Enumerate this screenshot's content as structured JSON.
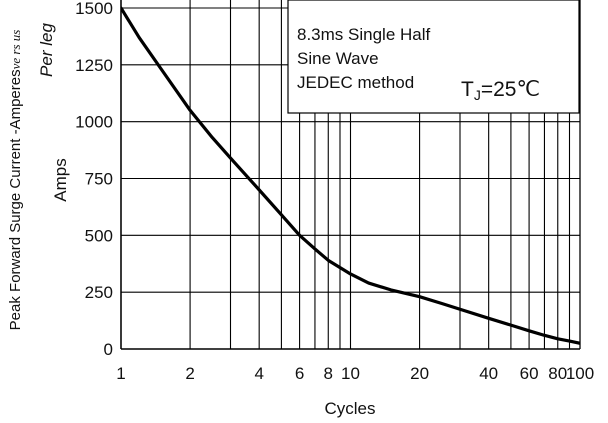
{
  "chart_data": {
    "type": "line",
    "title": "",
    "xlabel": "Cycles",
    "ylabel": "Peak Forward Surge Current -Amperes",
    "ylabel_fragment": "ve rs us",
    "ylabel_per_leg": "Per leg",
    "ylabel_amps": "Amps",
    "x_scale": "log",
    "xlim": [
      1,
      100
    ],
    "ylim": [
      0,
      1500
    ],
    "x_ticks": [
      1,
      2,
      4,
      6,
      8,
      10,
      20,
      40,
      60,
      80,
      100
    ],
    "x_tick_labels": [
      "1",
      "2",
      "4",
      "6",
      "8",
      "10",
      "20",
      "40",
      "60",
      "80",
      "100"
    ],
    "y_ticks": [
      0,
      250,
      500,
      750,
      1000,
      1250,
      1500
    ],
    "y_tick_labels": [
      "0",
      "250",
      "500",
      "750",
      "1000",
      "1250",
      "1500"
    ],
    "grid": true,
    "annotation_lines": [
      "8.3ms Single Half",
      "Sine Wave",
      "JEDEC method"
    ],
    "annotation_tj": "T",
    "annotation_tj_sub": "J",
    "annotation_tj_value": "=25℃",
    "series": [
      {
        "x": [
          1,
          1.2,
          1.5,
          2,
          2.5,
          3,
          4,
          5,
          6,
          7,
          8,
          10,
          12,
          15,
          20,
          25,
          30,
          40,
          50,
          60,
          70,
          80,
          90,
          100
        ],
        "y": [
          1500,
          1370,
          1230,
          1050,
          930,
          840,
          700,
          590,
          500,
          440,
          390,
          330,
          290,
          260,
          230,
          200,
          175,
          135,
          105,
          80,
          60,
          45,
          35,
          25
        ]
      }
    ]
  }
}
